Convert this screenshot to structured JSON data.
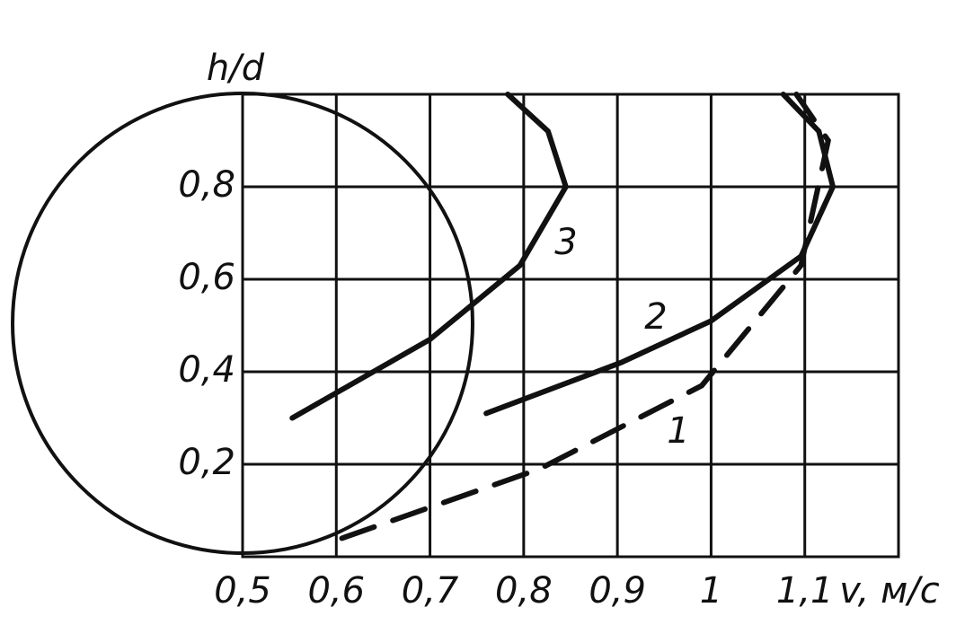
{
  "chart_data": {
    "type": "line",
    "x_label": "v, м/с",
    "y_label": "h/d",
    "xlim": [
      0.5,
      1.2
    ],
    "ylim": [
      0,
      1
    ],
    "xticks": [
      {
        "value": 0.5,
        "label": "0,5"
      },
      {
        "value": 0.6,
        "label": "0,6"
      },
      {
        "value": 0.7,
        "label": "0,7"
      },
      {
        "value": 0.8,
        "label": "0,8"
      },
      {
        "value": 0.9,
        "label": "0,9"
      },
      1,
      {
        "value": 1.1,
        "label": "1,1"
      }
    ],
    "yticks": [
      {
        "value": 0.2,
        "label": "0,2"
      },
      {
        "value": 0.4,
        "label": "0,4"
      },
      {
        "value": 0.6,
        "label": "0,6"
      },
      {
        "value": 0.8,
        "label": "0,8"
      }
    ],
    "grid": true,
    "series": [
      {
        "name": "1",
        "color": "#111111",
        "dashed": true,
        "x": [
          0.606,
          0.817,
          0.99,
          1.096,
          1.125,
          1.091
        ],
        "values": [
          0.04,
          0.19,
          0.37,
          0.63,
          0.9,
          1.0
        ]
      },
      {
        "name": "2",
        "color": "#111111",
        "dashed": false,
        "x": [
          0.76,
          0.904,
          1.0,
          1.096,
          1.13,
          1.115,
          1.077
        ],
        "values": [
          0.31,
          0.42,
          0.51,
          0.65,
          0.8,
          0.92,
          1.0
        ]
      },
      {
        "name": "3",
        "color": "#111111",
        "dashed": false,
        "x": [
          0.553,
          0.7,
          0.796,
          0.845,
          0.826,
          0.783
        ],
        "values": [
          0.3,
          0.47,
          0.63,
          0.8,
          0.92,
          1.0
        ]
      }
    ]
  }
}
